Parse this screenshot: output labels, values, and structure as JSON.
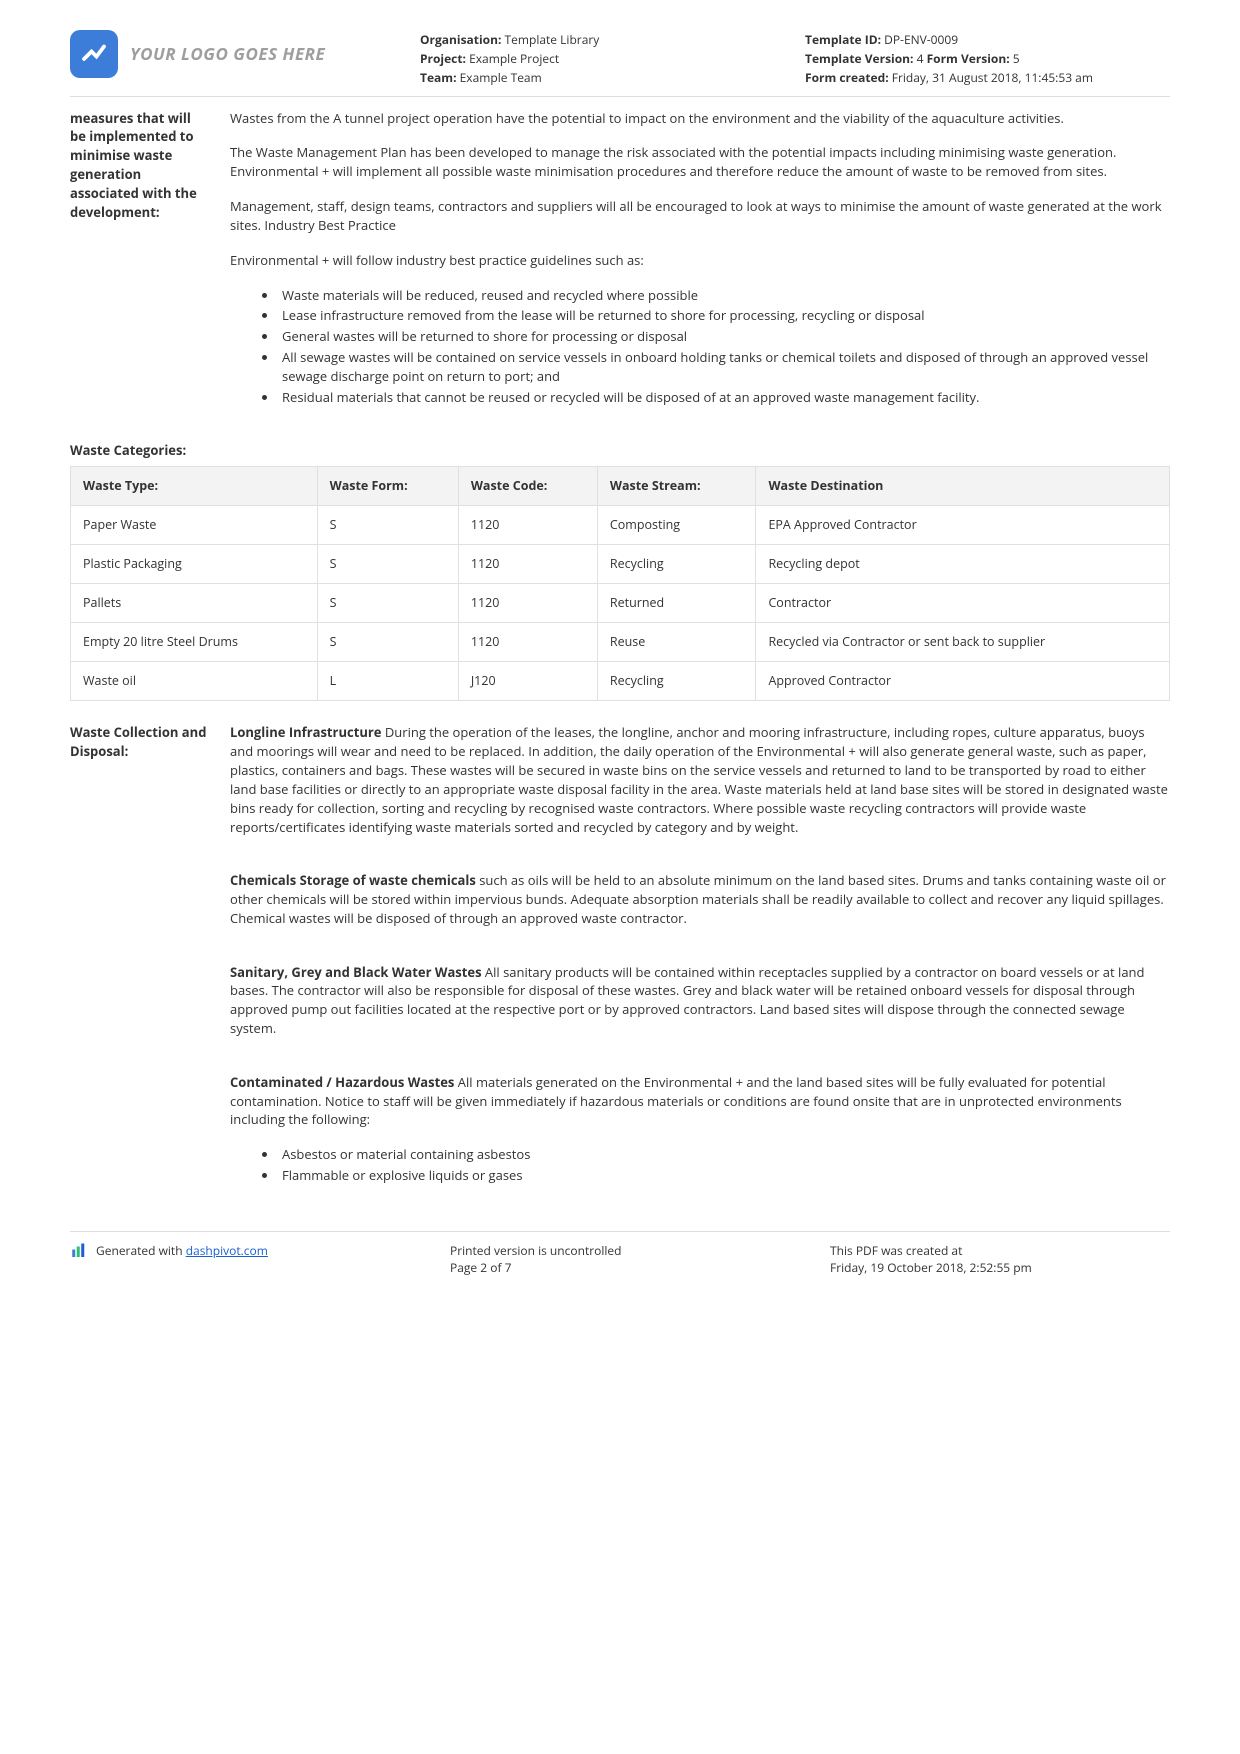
{
  "header": {
    "logo_text": "YOUR LOGO GOES HERE",
    "organisation_label": "Organisation:",
    "organisation_value": "Template Library",
    "project_label": "Project:",
    "project_value": "Example Project",
    "team_label": "Team:",
    "team_value": "Example Team",
    "template_id_label": "Template ID:",
    "template_id_value": "DP-ENV-0009",
    "template_version_label": "Template Version:",
    "template_version_value": "4",
    "form_version_label": "Form Version:",
    "form_version_value": "5",
    "form_created_label": "Form created:",
    "form_created_value": "Friday, 31 August 2018, 11:45:53 am"
  },
  "section1": {
    "label": "measures that will be implemented to minimise waste generation associated with the development:",
    "p1": "Wastes from the A tunnel project operation have the potential to impact on the environment and the viability of the aquaculture activities.",
    "p2": "The Waste Management Plan has been developed to manage the risk associated with the potential impacts including minimising waste generation. Environmental + will implement all possible waste minimisation procedures and therefore reduce the amount of waste to be removed from sites.",
    "p3": "Management, staff, design teams, contractors and suppliers will all be encouraged to look at ways to minimise the amount of waste generated at the work sites. Industry Best Practice",
    "p4": "Environmental + will follow industry best practice guidelines such as:",
    "bullets": [
      "Waste materials will be reduced, reused and recycled where possible",
      "Lease infrastructure removed from the lease will be returned to shore for processing, recycling or disposal",
      "General wastes will be returned to shore for processing or disposal",
      "All sewage wastes will be contained on service vessels in onboard holding tanks or chemical toilets and disposed of through an approved vessel sewage discharge point on return to port; and",
      "Residual materials that cannot be reused or recycled will be disposed of at an approved waste management facility."
    ]
  },
  "waste_categories": {
    "heading": "Waste Categories:",
    "columns": [
      "Waste Type:",
      "Waste Form:",
      "Waste Code:",
      "Waste Stream:",
      "Waste Destination"
    ],
    "rows": [
      [
        "Paper Waste",
        "S",
        "1120",
        "Composting",
        "EPA Approved Contractor"
      ],
      [
        "Plastic Packaging",
        "S",
        "1120",
        "Recycling",
        "Recycling depot"
      ],
      [
        "Pallets",
        "S",
        "1120",
        "Returned",
        "Contractor"
      ],
      [
        "Empty 20 litre Steel Drums",
        "S",
        "1120",
        "Reuse",
        "Recycled via Contractor or sent back to supplier"
      ],
      [
        "Waste oil",
        "L",
        "J120",
        "Recycling",
        "Approved Contractor"
      ]
    ]
  },
  "section2": {
    "label": "Waste Collection and Disposal:",
    "p1_bold": "Longline Infrastructure",
    "p1_rest": " During the operation of the leases, the longline, anchor and mooring infrastructure, including ropes, culture apparatus, buoys and moorings will wear and need to be replaced. In addition, the daily operation of the Environmental + will also generate general waste, such as paper, plastics, containers and bags. These wastes will be secured in waste bins on the service vessels and returned to land to be transported by road to either land base facilities or directly to an appropriate waste disposal facility in the area. Waste materials held at land base sites will be stored in designated waste bins ready for collection, sorting and recycling by recognised waste contractors. Where possible waste recycling contractors will provide waste reports/certificates identifying waste materials sorted and recycled by category and by weight.",
    "p2_bold": "Chemicals Storage of waste chemicals",
    "p2_rest": " such as oils will be held to an absolute minimum on the land based sites. Drums and tanks containing waste oil or other chemicals will be stored within impervious bunds. Adequate absorption materials shall be readily available to collect and recover any liquid spillages. Chemical wastes will be disposed of through an approved waste contractor.",
    "p3_bold": "Sanitary, Grey and Black Water Wastes",
    "p3_rest": " All sanitary products will be contained within receptacles supplied by a contractor on board vessels or at land bases. The contractor will also be responsible for disposal of these wastes. Grey and black water will be retained onboard vessels for disposal through approved pump out facilities located at the respective port or by approved contractors. Land based sites will dispose through the connected sewage system.",
    "p4_bold": "Contaminated / Hazardous Wastes",
    "p4_rest": " All materials generated on the Environmental + and the land based sites will be fully evaluated for potential contamination. Notice to staff will be given immediately if hazardous materials or conditions are found onsite that are in unprotected environments including the following:",
    "bullets2": [
      "Asbestos or material containing asbestos",
      "Flammable or explosive liquids or gases"
    ]
  },
  "footer": {
    "gen_prefix": "Generated with ",
    "gen_link": "dashpivot.com",
    "uncontrolled": "Printed version is uncontrolled",
    "page": "Page 2 of 7",
    "created_label": "This PDF was created at",
    "created_value": "Friday, 19 October 2018, 2:52:55 pm"
  }
}
